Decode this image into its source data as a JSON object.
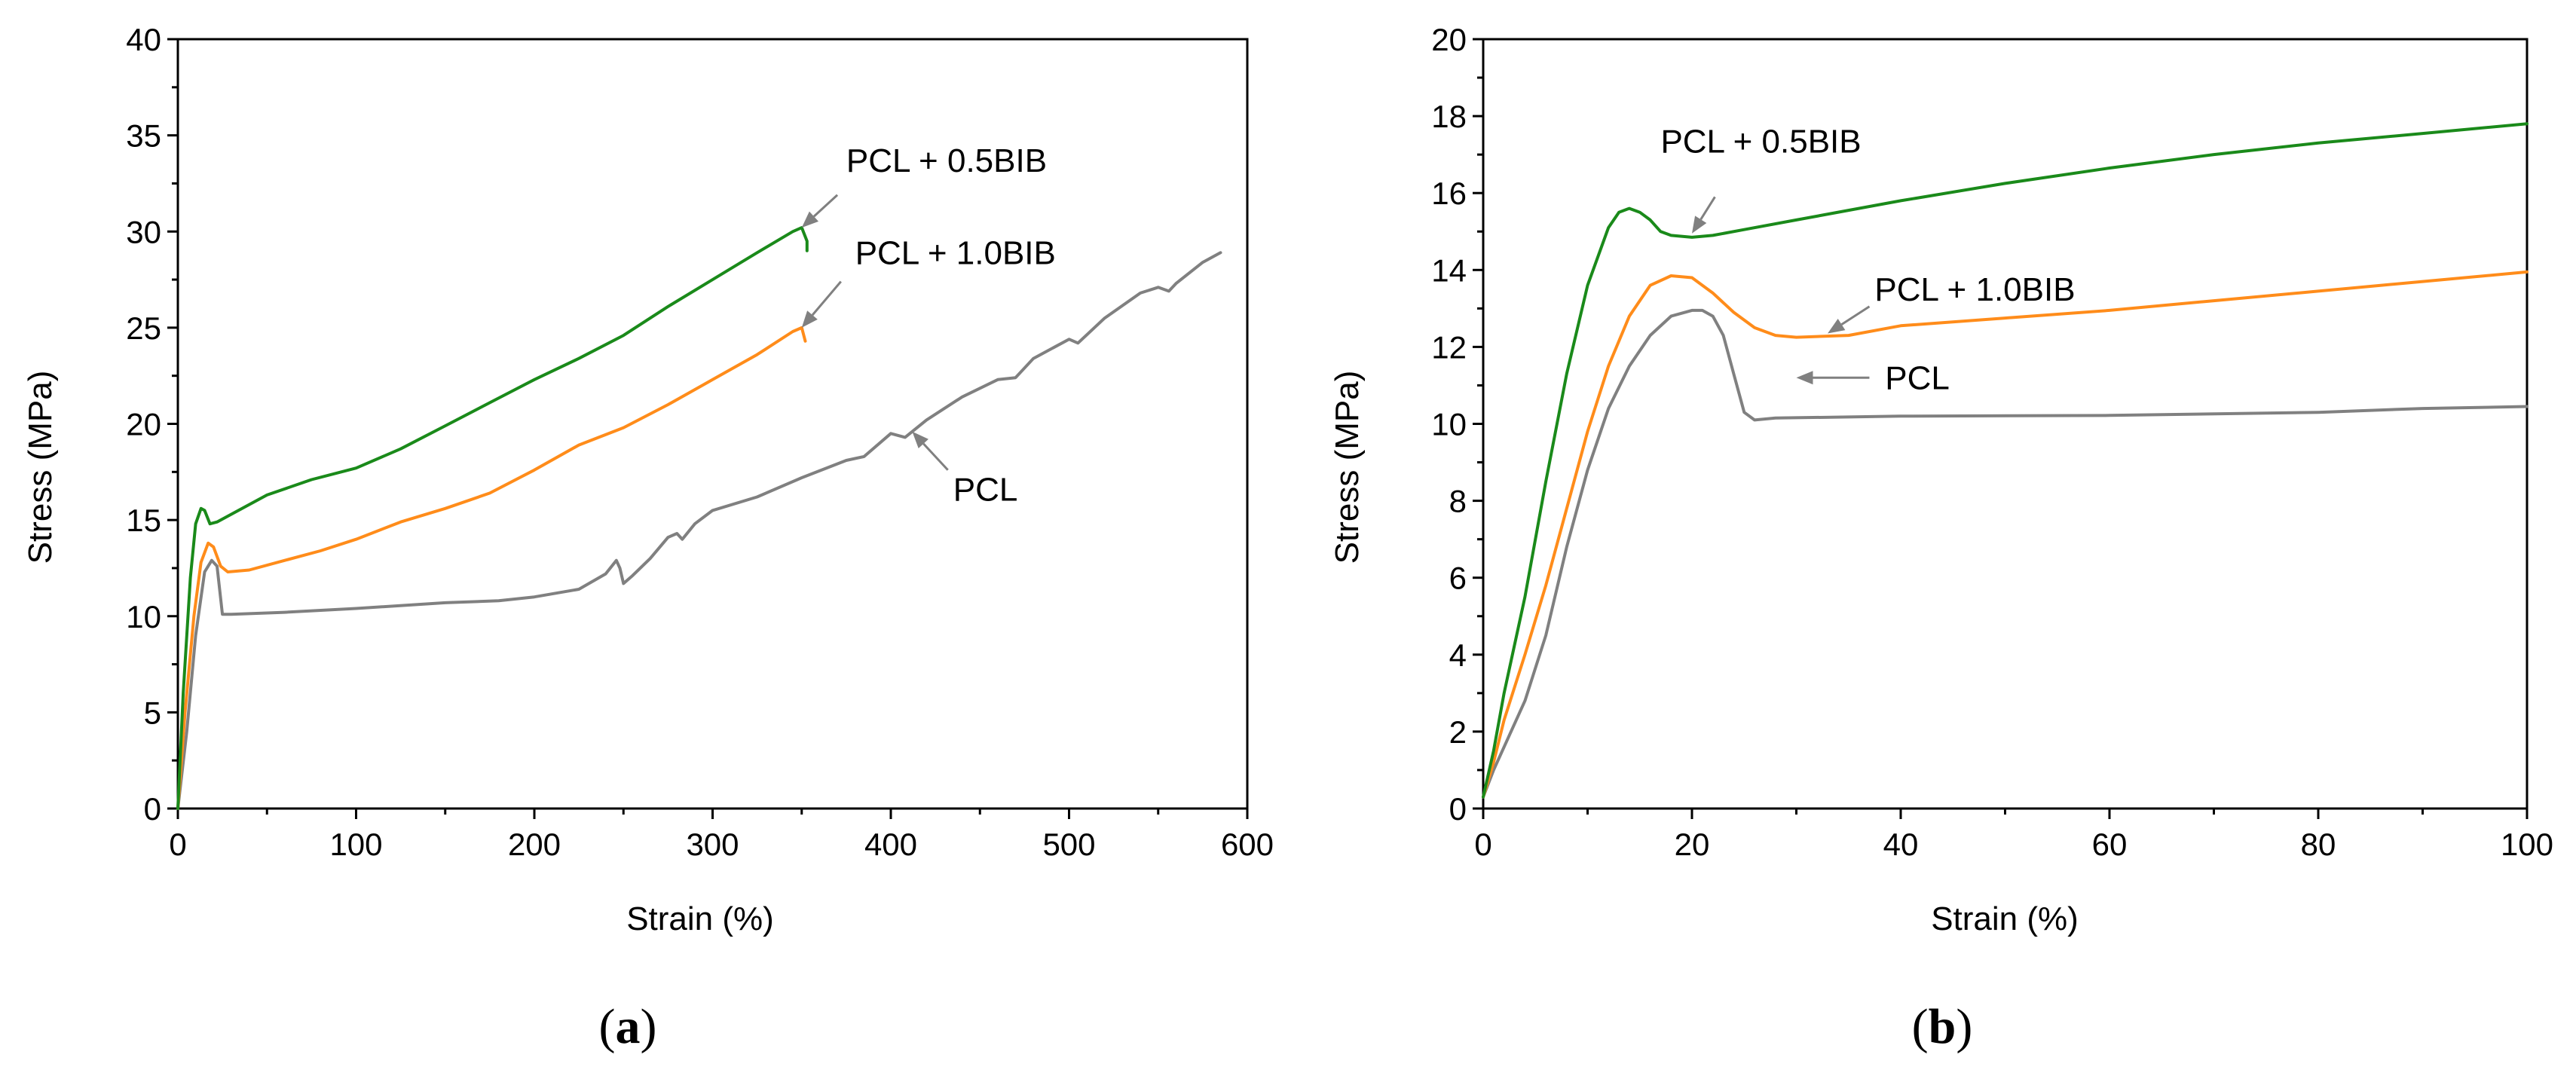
{
  "chart_data": [
    {
      "type": "line",
      "panel": "a",
      "caption_letter": "a",
      "xlabel": "Strain (%)",
      "ylabel": "Stress (MPa)",
      "xlim": [
        0,
        600
      ],
      "ylim": [
        0,
        40
      ],
      "xticks": [
        0,
        100,
        200,
        300,
        400,
        500,
        600
      ],
      "yticks": [
        0,
        5,
        10,
        15,
        20,
        25,
        30,
        35,
        40
      ],
      "series": [
        {
          "name": "PCL + 0.5BIB",
          "color": "#1a8a1a",
          "points": [
            [
              0,
              0
            ],
            [
              3,
              6
            ],
            [
              7,
              12
            ],
            [
              10,
              14.8
            ],
            [
              13,
              15.6
            ],
            [
              15,
              15.5
            ],
            [
              18,
              14.8
            ],
            [
              22,
              14.9
            ],
            [
              30,
              15.3
            ],
            [
              50,
              16.3
            ],
            [
              75,
              17.1
            ],
            [
              100,
              17.7
            ],
            [
              125,
              18.7
            ],
            [
              150,
              19.9
            ],
            [
              175,
              21.1
            ],
            [
              200,
              22.3
            ],
            [
              225,
              23.4
            ],
            [
              250,
              24.6
            ],
            [
              275,
              26.1
            ],
            [
              300,
              27.5
            ],
            [
              325,
              28.9
            ],
            [
              345,
              30.0
            ],
            [
              350,
              30.2
            ],
            [
              353,
              29.5
            ],
            [
              353,
              29.0
            ]
          ]
        },
        {
          "name": "PCL + 1.0BIB",
          "color": "#ff8c1a",
          "points": [
            [
              0,
              0
            ],
            [
              4,
              5
            ],
            [
              9,
              10
            ],
            [
              13,
              12.8
            ],
            [
              17,
              13.8
            ],
            [
              20,
              13.6
            ],
            [
              24,
              12.6
            ],
            [
              28,
              12.3
            ],
            [
              40,
              12.4
            ],
            [
              60,
              12.9
            ],
            [
              80,
              13.4
            ],
            [
              100,
              14.0
            ],
            [
              125,
              14.9
            ],
            [
              150,
              15.6
            ],
            [
              175,
              16.4
            ],
            [
              200,
              17.6
            ],
            [
              225,
              18.9
            ],
            [
              250,
              19.8
            ],
            [
              275,
              21.0
            ],
            [
              300,
              22.3
            ],
            [
              325,
              23.6
            ],
            [
              345,
              24.8
            ],
            [
              350,
              25.0
            ],
            [
              352,
              24.3
            ]
          ]
        },
        {
          "name": "PCL",
          "color": "#808080",
          "points": [
            [
              0,
              0
            ],
            [
              5,
              4
            ],
            [
              10,
              9
            ],
            [
              15,
              12.3
            ],
            [
              19,
              12.9
            ],
            [
              22,
              12.6
            ],
            [
              25,
              10.1
            ],
            [
              30,
              10.1
            ],
            [
              60,
              10.2
            ],
            [
              100,
              10.4
            ],
            [
              150,
              10.7
            ],
            [
              180,
              10.8
            ],
            [
              200,
              11.0
            ],
            [
              225,
              11.4
            ],
            [
              240,
              12.2
            ],
            [
              246,
              12.9
            ],
            [
              248,
              12.5
            ],
            [
              250,
              11.7
            ],
            [
              255,
              12.1
            ],
            [
              265,
              13.0
            ],
            [
              275,
              14.1
            ],
            [
              280,
              14.3
            ],
            [
              283,
              14.0
            ],
            [
              290,
              14.8
            ],
            [
              300,
              15.5
            ],
            [
              325,
              16.2
            ],
            [
              350,
              17.2
            ],
            [
              375,
              18.1
            ],
            [
              385,
              18.3
            ],
            [
              400,
              19.5
            ],
            [
              408,
              19.3
            ],
            [
              420,
              20.2
            ],
            [
              440,
              21.4
            ],
            [
              460,
              22.3
            ],
            [
              470,
              22.4
            ],
            [
              480,
              23.4
            ],
            [
              500,
              24.4
            ],
            [
              505,
              24.2
            ],
            [
              520,
              25.5
            ],
            [
              540,
              26.8
            ],
            [
              550,
              27.1
            ],
            [
              556,
              26.9
            ],
            [
              560,
              27.3
            ],
            [
              575,
              28.4
            ],
            [
              585,
              28.9
            ]
          ]
        }
      ],
      "annotations": [
        {
          "label": "PCL + 0.5BIB",
          "text_pos": [
            375,
            33.1
          ],
          "tip": [
            350,
            30.2
          ],
          "tail": [
            370,
            31.9
          ]
        },
        {
          "label": "PCL + 1.0BIB",
          "text_pos": [
            380,
            28.3
          ],
          "tip": [
            350,
            25.0
          ],
          "tail": [
            372,
            27.4
          ]
        },
        {
          "label": "PCL",
          "text_pos": [
            435,
            16.0
          ],
          "tip": [
            412,
            19.6
          ],
          "tail": [
            432,
            17.6
          ]
        }
      ]
    },
    {
      "type": "line",
      "panel": "b",
      "caption_letter": "b",
      "xlabel": "Strain (%)",
      "ylabel": "Stress (MPa)",
      "xlim": [
        0,
        100
      ],
      "ylim": [
        0,
        20
      ],
      "xticks": [
        0,
        20,
        40,
        60,
        80,
        100
      ],
      "yticks": [
        0,
        2,
        4,
        6,
        8,
        10,
        12,
        14,
        16,
        18,
        20
      ],
      "series": [
        {
          "name": "PCL + 0.5BIB",
          "color": "#1a8a1a",
          "points": [
            [
              0,
              0.3
            ],
            [
              1,
              1.5
            ],
            [
              2,
              3.0
            ],
            [
              4,
              5.5
            ],
            [
              6,
              8.5
            ],
            [
              8,
              11.3
            ],
            [
              10,
              13.6
            ],
            [
              12,
              15.1
            ],
            [
              13,
              15.5
            ],
            [
              14,
              15.6
            ],
            [
              15,
              15.5
            ],
            [
              16,
              15.3
            ],
            [
              17,
              15.0
            ],
            [
              18,
              14.9
            ],
            [
              20,
              14.85
            ],
            [
              22,
              14.9
            ],
            [
              25,
              15.05
            ],
            [
              30,
              15.3
            ],
            [
              40,
              15.8
            ],
            [
              50,
              16.25
            ],
            [
              60,
              16.65
            ],
            [
              70,
              17.0
            ],
            [
              80,
              17.3
            ],
            [
              90,
              17.55
            ],
            [
              100,
              17.8
            ]
          ]
        },
        {
          "name": "PCL + 1.0BIB",
          "color": "#ff8c1a",
          "points": [
            [
              0,
              0.3
            ],
            [
              1,
              1.2
            ],
            [
              2,
              2.3
            ],
            [
              4,
              4.0
            ],
            [
              6,
              5.8
            ],
            [
              8,
              7.8
            ],
            [
              10,
              9.8
            ],
            [
              12,
              11.5
            ],
            [
              14,
              12.8
            ],
            [
              16,
              13.6
            ],
            [
              18,
              13.85
            ],
            [
              20,
              13.8
            ],
            [
              22,
              13.4
            ],
            [
              24,
              12.9
            ],
            [
              26,
              12.5
            ],
            [
              28,
              12.3
            ],
            [
              30,
              12.25
            ],
            [
              35,
              12.3
            ],
            [
              40,
              12.55
            ],
            [
              50,
              12.75
            ],
            [
              60,
              12.95
            ],
            [
              70,
              13.2
            ],
            [
              80,
              13.45
            ],
            [
              90,
              13.7
            ],
            [
              100,
              13.95
            ]
          ]
        },
        {
          "name": "PCL",
          "color": "#808080",
          "points": [
            [
              0,
              0.3
            ],
            [
              1,
              1.0
            ],
            [
              2,
              1.6
            ],
            [
              4,
              2.8
            ],
            [
              6,
              4.5
            ],
            [
              8,
              6.8
            ],
            [
              10,
              8.8
            ],
            [
              12,
              10.4
            ],
            [
              14,
              11.5
            ],
            [
              16,
              12.3
            ],
            [
              18,
              12.8
            ],
            [
              20,
              12.95
            ],
            [
              21,
              12.95
            ],
            [
              22,
              12.8
            ],
            [
              23,
              12.3
            ],
            [
              24,
              11.3
            ],
            [
              25,
              10.3
            ],
            [
              26,
              10.1
            ],
            [
              28,
              10.15
            ],
            [
              40,
              10.2
            ],
            [
              60,
              10.22
            ],
            [
              80,
              10.3
            ],
            [
              90,
              10.4
            ],
            [
              100,
              10.45
            ]
          ]
        }
      ],
      "annotations": [
        {
          "label": "PCL + 0.5BIB",
          "text_pos": [
            17,
            17.05
          ],
          "tip": [
            20,
            14.95
          ],
          "tail": [
            22.2,
            15.9
          ]
        },
        {
          "label": "PCL + 1.0BIB",
          "text_pos": [
            37.5,
            13.2
          ],
          "tip": [
            33,
            12.35
          ],
          "tail": [
            37,
            13.05
          ]
        },
        {
          "label": "PCL",
          "text_pos": [
            38.5,
            10.9
          ],
          "tip": [
            30,
            11.2
          ],
          "tail": [
            37,
            11.2
          ]
        }
      ]
    }
  ]
}
